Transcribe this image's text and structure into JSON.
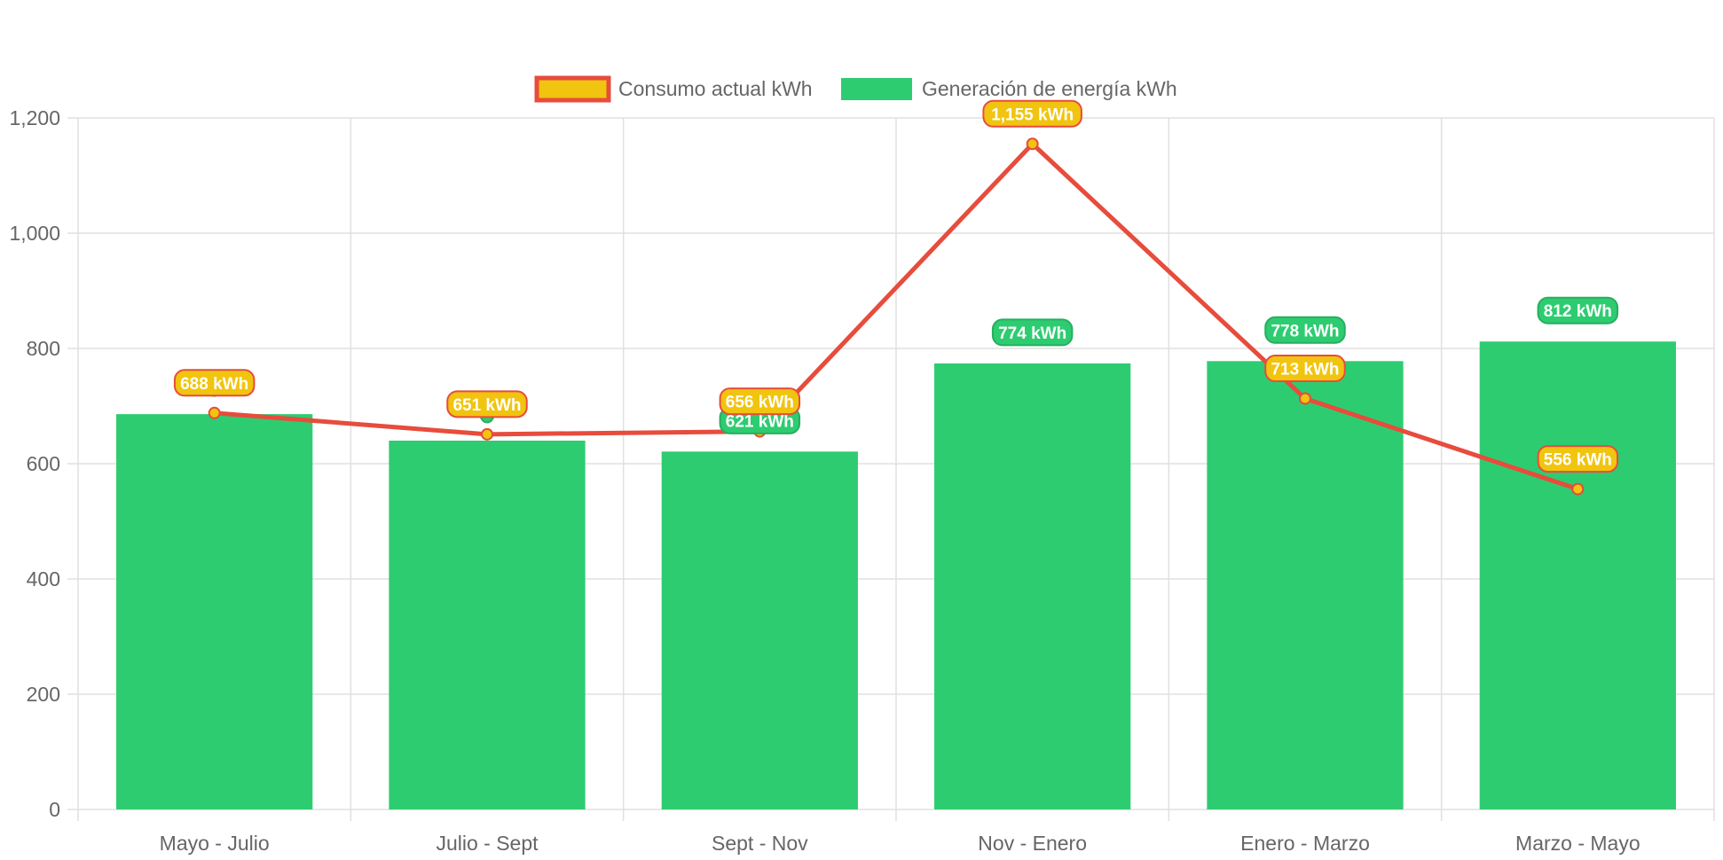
{
  "chart_data": {
    "type": "bar",
    "categories": [
      "Mayo - Julio",
      "Julio - Sept",
      "Sept - Nov",
      "Nov - Enero",
      "Enero - Marzo",
      "Marzo - Mayo"
    ],
    "series": [
      {
        "name": "Consumo actual kWh",
        "render": "line",
        "values": [
          688,
          651,
          656,
          1155,
          713,
          556
        ],
        "labels": [
          "688 kWh",
          "651 kWh",
          "656 kWh",
          "1,155 kWh",
          "713 kWh",
          "556 kWh"
        ]
      },
      {
        "name": "Generación de energía kWh",
        "render": "bar",
        "values": [
          686,
          640,
          621,
          774,
          778,
          812
        ],
        "labels": [
          "",
          "",
          "621 kWh",
          "774 kWh",
          "778 kWh",
          "812 kWh"
        ]
      }
    ],
    "y_ticks": [
      "0",
      "200",
      "400",
      "600",
      "800",
      "1,000",
      "1,200"
    ],
    "ylim": [
      0,
      1200
    ],
    "grid": true,
    "legend_position": "top"
  },
  "colors": {
    "line": "#e74c3c",
    "point_fill": "#f1c40f",
    "bar": "#2ecc71",
    "bar_label_border": "#27ae60",
    "grid": "#e0e0e0",
    "axis_text": "#666666"
  }
}
